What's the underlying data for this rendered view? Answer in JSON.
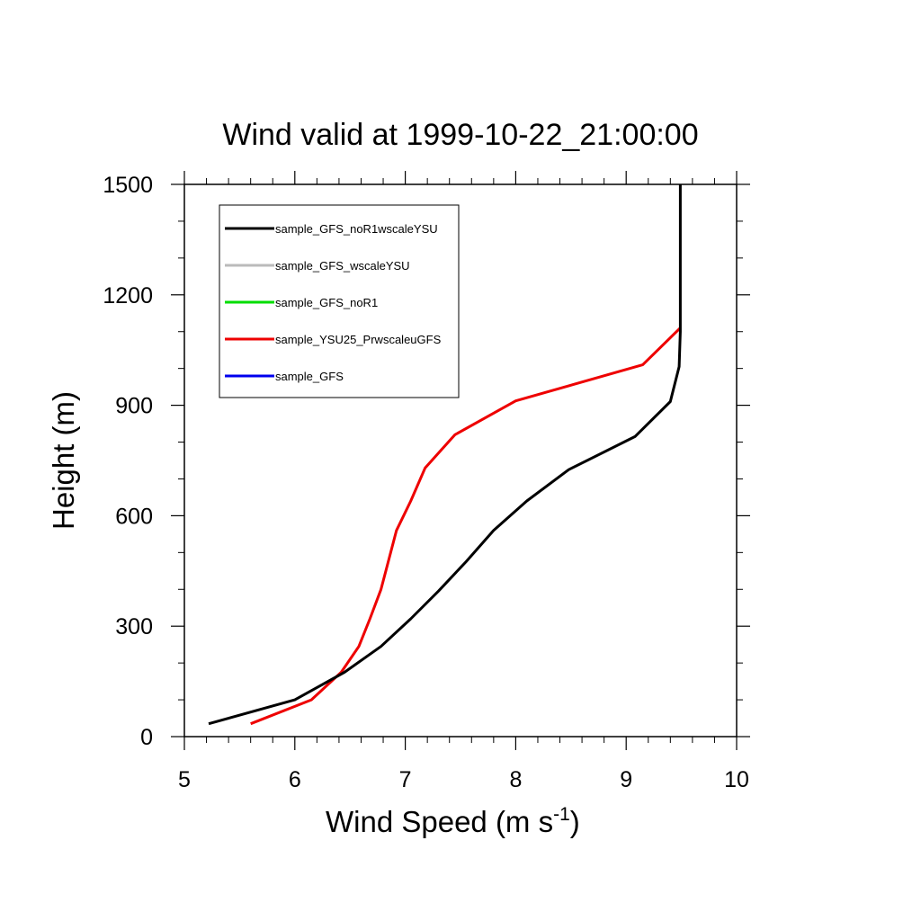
{
  "chart_data": {
    "type": "line",
    "title": "Wind valid at 1999-10-22_21:00:00",
    "xlabel": "Wind Speed (m s",
    "xlabel_superscript": "-1",
    "xlabel_suffix": ")",
    "ylabel": "Height (m)",
    "xlim": [
      5,
      10
    ],
    "ylim": [
      0,
      1500
    ],
    "x_ticks": [
      5,
      6,
      7,
      8,
      9,
      10
    ],
    "y_ticks": [
      0,
      300,
      600,
      900,
      1200,
      1500
    ],
    "grid": false,
    "legend_position": "top-left",
    "series": [
      {
        "name": "sample_GFS_noR1wscaleYSU",
        "color": "#000000",
        "points": [
          [
            5.22,
            35
          ],
          [
            6.0,
            100
          ],
          [
            6.45,
            175
          ],
          [
            6.78,
            245
          ],
          [
            7.05,
            320
          ],
          [
            7.3,
            395
          ],
          [
            7.55,
            475
          ],
          [
            7.8,
            560
          ],
          [
            8.1,
            640
          ],
          [
            8.48,
            725
          ],
          [
            9.08,
            815
          ],
          [
            9.4,
            910
          ],
          [
            9.48,
            1005
          ],
          [
            9.49,
            1100
          ],
          [
            9.49,
            1500
          ]
        ]
      },
      {
        "name": "sample_GFS_wscaleYSU",
        "color": "#bbbbbb",
        "points": []
      },
      {
        "name": "sample_GFS_noR1",
        "color": "#00dd00",
        "points": []
      },
      {
        "name": "sample_YSU25_PrwscaleuGFS",
        "color": "#ee0000",
        "points": [
          [
            5.6,
            35
          ],
          [
            6.15,
            100
          ],
          [
            6.42,
            175
          ],
          [
            6.58,
            245
          ],
          [
            6.68,
            320
          ],
          [
            6.78,
            400
          ],
          [
            6.92,
            560
          ],
          [
            7.05,
            640
          ],
          [
            7.18,
            730
          ],
          [
            7.45,
            820
          ],
          [
            8.0,
            912
          ],
          [
            9.15,
            1010
          ],
          [
            9.49,
            1110
          ]
        ]
      },
      {
        "name": "sample_GFS",
        "color": "#0000ee",
        "points": []
      }
    ]
  }
}
